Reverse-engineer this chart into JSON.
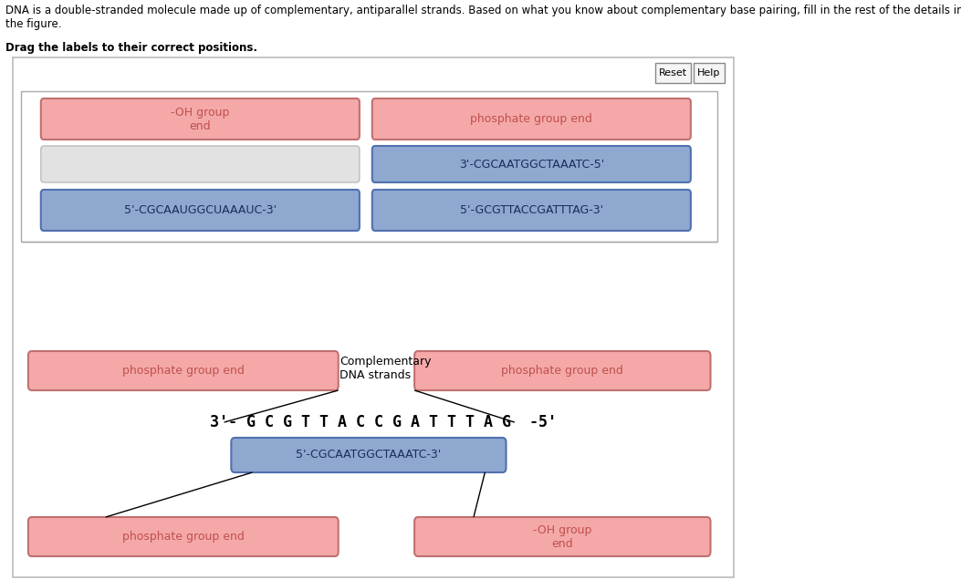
{
  "title_text": "DNA is a double-stranded molecule made up of complementary, antiparallel strands. Based on what you know about complementary base pairing, fill in the rest of the details in\nthe figure.",
  "subtitle_text": "Drag the labels to their correct positions.",
  "bg_color": "#ffffff",
  "pink_box_color": "#f4a9a8",
  "pink_box_edge": "#c07070",
  "blue_box_color": "#8fa8d0",
  "blue_box_edge": "#5070b0",
  "gray_box_color": "#e2e2e2",
  "gray_box_edge": "#bbbbbb",
  "pink_text_color": "#c05050",
  "blue_text_color": "#1a2e5a",
  "top_section": {
    "row1_left_label": "-OH group\nend",
    "row1_right_label": "phosphate group end",
    "row2_right_label": "3'-CGCAATGGCTAAATC-5'",
    "row3_left_label": "5'-CGCAAUGGCUAAAUC-3'",
    "row3_right_label": "5'-GCGTTACCGATTTAG-3'"
  },
  "bottom_section": {
    "top_left_label": "phosphate group end",
    "top_right_label": "phosphate group end",
    "center_strand": "3'- G C G T T A C C G A T T T A G  -5'",
    "center_bottom_label": "5'-CGCAATGGCTAAATC-3'",
    "bot_left_label": "phosphate group end",
    "bot_right_label": "-OH group\nend",
    "annotation_label": "Complementary\nDNA strands"
  },
  "button_reset": "Reset",
  "button_help": "Help"
}
